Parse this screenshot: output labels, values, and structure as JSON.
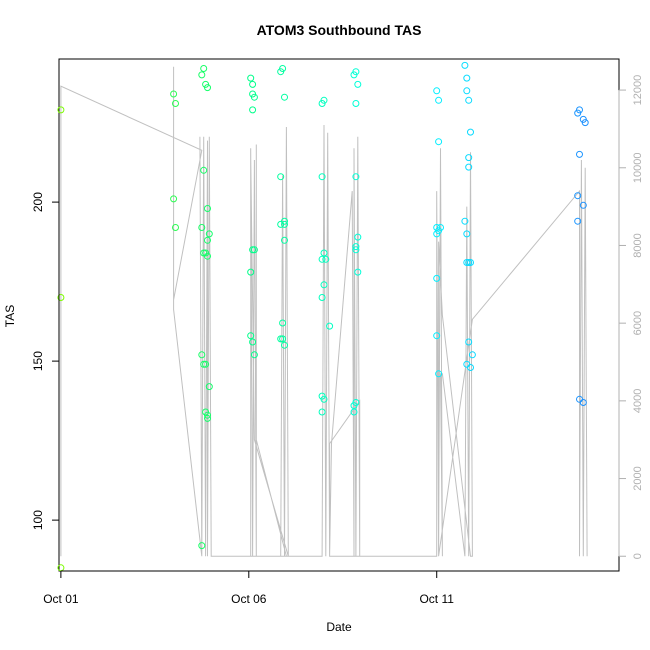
{
  "chart_data": {
    "type": "scatter",
    "title": "ATOM3 Southbound TAS",
    "xlabel": "Date",
    "ylabel": "TAS",
    "x_unit": "day of October",
    "xlim": [
      0.95,
      15.85
    ],
    "ylim": [
      84,
      245
    ],
    "x_ticks": [
      {
        "value": 1,
        "label": "Oct 01"
      },
      {
        "value": 6,
        "label": "Oct 06"
      },
      {
        "value": 11,
        "label": "Oct 11"
      }
    ],
    "y_ticks": [
      100,
      150,
      200
    ],
    "y2_ticks": [
      0,
      2000,
      4000,
      6000,
      8000,
      10000,
      12000
    ],
    "y2lim": [
      -380,
      12800
    ],
    "grid": false,
    "colors": {
      "scatter_gradient": [
        "#7cfc00",
        "#00ff7f",
        "#00ffff",
        "#1e90ff"
      ],
      "line": "#c0c0c0",
      "right_axis": "#b0b0b0"
    },
    "series": [
      {
        "marker": "circle",
        "points": [
          [
            1.0,
            229
          ],
          [
            1.0,
            170
          ],
          [
            1.0,
            85
          ],
          [
            4.0,
            234
          ],
          [
            4.05,
            231
          ],
          [
            4.0,
            201
          ],
          [
            4.05,
            192
          ],
          [
            4.75,
            240
          ],
          [
            4.8,
            242
          ],
          [
            4.85,
            237
          ],
          [
            4.9,
            236
          ],
          [
            4.8,
            210
          ],
          [
            4.9,
            198
          ],
          [
            4.75,
            192
          ],
          [
            4.95,
            190
          ],
          [
            4.9,
            188
          ],
          [
            4.8,
            184
          ],
          [
            4.85,
            184
          ],
          [
            4.9,
            183
          ],
          [
            4.75,
            152
          ],
          [
            4.8,
            149
          ],
          [
            4.85,
            149
          ],
          [
            4.85,
            134
          ],
          [
            4.9,
            133
          ],
          [
            4.9,
            132
          ],
          [
            4.95,
            142
          ],
          [
            4.75,
            92
          ],
          [
            6.05,
            239
          ],
          [
            6.1,
            237
          ],
          [
            6.1,
            234
          ],
          [
            6.15,
            233
          ],
          [
            6.1,
            229
          ],
          [
            6.1,
            185
          ],
          [
            6.15,
            185
          ],
          [
            6.05,
            178
          ],
          [
            6.05,
            158
          ],
          [
            6.1,
            156
          ],
          [
            6.15,
            152
          ],
          [
            6.85,
            241
          ],
          [
            6.9,
            242
          ],
          [
            6.95,
            233
          ],
          [
            6.85,
            208
          ],
          [
            6.85,
            193
          ],
          [
            6.95,
            194
          ],
          [
            6.95,
            193
          ],
          [
            6.95,
            188
          ],
          [
            6.9,
            162
          ],
          [
            6.85,
            157
          ],
          [
            6.9,
            157
          ],
          [
            6.95,
            155
          ],
          [
            7.95,
            231
          ],
          [
            8.0,
            232
          ],
          [
            7.95,
            208
          ],
          [
            7.95,
            182
          ],
          [
            8.0,
            184
          ],
          [
            8.05,
            182
          ],
          [
            8.0,
            174
          ],
          [
            7.95,
            170
          ],
          [
            8.15,
            161
          ],
          [
            7.95,
            139
          ],
          [
            8.0,
            138
          ],
          [
            7.95,
            134
          ],
          [
            8.8,
            240
          ],
          [
            8.85,
            241
          ],
          [
            8.9,
            237
          ],
          [
            8.85,
            231
          ],
          [
            8.85,
            208
          ],
          [
            8.85,
            186
          ],
          [
            8.9,
            189
          ],
          [
            8.85,
            185
          ],
          [
            8.9,
            178
          ],
          [
            8.85,
            137
          ],
          [
            8.8,
            136
          ],
          [
            8.8,
            134
          ],
          [
            11.0,
            235
          ],
          [
            11.05,
            232
          ],
          [
            11.05,
            219
          ],
          [
            11.0,
            192
          ],
          [
            11.05,
            191
          ],
          [
            11.1,
            192
          ],
          [
            11.0,
            190
          ],
          [
            11.0,
            176
          ],
          [
            11.0,
            158
          ],
          [
            11.05,
            146
          ],
          [
            11.75,
            243
          ],
          [
            11.8,
            239
          ],
          [
            11.8,
            235
          ],
          [
            11.85,
            232
          ],
          [
            11.9,
            222
          ],
          [
            11.85,
            214
          ],
          [
            11.85,
            211
          ],
          [
            11.75,
            194
          ],
          [
            11.8,
            190
          ],
          [
            11.8,
            181
          ],
          [
            11.85,
            181
          ],
          [
            11.9,
            181
          ],
          [
            11.95,
            152
          ],
          [
            11.85,
            156
          ],
          [
            11.8,
            149
          ],
          [
            11.9,
            148
          ],
          [
            14.75,
            228
          ],
          [
            14.8,
            229
          ],
          [
            14.9,
            226
          ],
          [
            14.95,
            225
          ],
          [
            14.8,
            215
          ],
          [
            14.75,
            202
          ],
          [
            14.9,
            199
          ],
          [
            14.75,
            194
          ],
          [
            14.8,
            138
          ],
          [
            14.9,
            137
          ]
        ]
      },
      {
        "axis": "right",
        "style": "line",
        "points": [
          [
            1.0,
            0
          ],
          [
            1.0,
            12100
          ],
          [
            4.75,
            10450
          ],
          [
            4.0,
            6600
          ],
          [
            4.0,
            12600
          ],
          [
            4.0,
            6350
          ],
          [
            4.75,
            0
          ],
          [
            4.7,
            10800
          ],
          [
            4.75,
            0
          ],
          [
            4.8,
            10800
          ],
          [
            4.85,
            0
          ],
          [
            4.9,
            10700
          ],
          [
            4.9,
            0
          ],
          [
            4.95,
            10800
          ],
          [
            5.0,
            0
          ],
          [
            6.05,
            0
          ],
          [
            6.05,
            10500
          ],
          [
            6.1,
            0
          ],
          [
            6.15,
            10200
          ],
          [
            6.2,
            0
          ],
          [
            6.2,
            10600
          ],
          [
            6.2,
            3000
          ],
          [
            7.0,
            0
          ],
          [
            6.85,
            0
          ],
          [
            6.9,
            9800
          ],
          [
            6.95,
            0
          ],
          [
            7.0,
            11050
          ],
          [
            7.05,
            0
          ],
          [
            6.15,
            3000
          ],
          [
            6.05,
            10300
          ],
          [
            6.05,
            0
          ],
          [
            7.95,
            0
          ],
          [
            8.0,
            11100
          ],
          [
            8.05,
            0
          ],
          [
            8.1,
            10900
          ],
          [
            8.15,
            0
          ],
          [
            8.2,
            2900
          ],
          [
            8.75,
            9400
          ],
          [
            8.8,
            0
          ],
          [
            8.8,
            10500
          ],
          [
            8.85,
            0
          ],
          [
            8.9,
            10800
          ],
          [
            8.95,
            0
          ],
          [
            8.95,
            4000
          ],
          [
            8.15,
            2900
          ],
          [
            8.15,
            0
          ],
          [
            11.0,
            0
          ],
          [
            11.0,
            9400
          ],
          [
            11.05,
            0
          ],
          [
            11.1,
            10500
          ],
          [
            11.15,
            0
          ],
          [
            11.1,
            4700
          ],
          [
            11.15,
            4700
          ],
          [
            11.75,
            0
          ],
          [
            11.8,
            9000
          ],
          [
            11.85,
            0
          ],
          [
            11.9,
            10400
          ],
          [
            11.95,
            0
          ],
          [
            11.9,
            0
          ],
          [
            11.15,
            6200
          ],
          [
            11.05,
            8100
          ],
          [
            11.05,
            0
          ],
          [
            11.95,
            6100
          ],
          [
            14.8,
            9400
          ],
          [
            14.8,
            0
          ],
          [
            14.85,
            10200
          ],
          [
            14.9,
            0
          ],
          [
            14.95,
            10000
          ],
          [
            15.0,
            0
          ]
        ]
      }
    ]
  }
}
